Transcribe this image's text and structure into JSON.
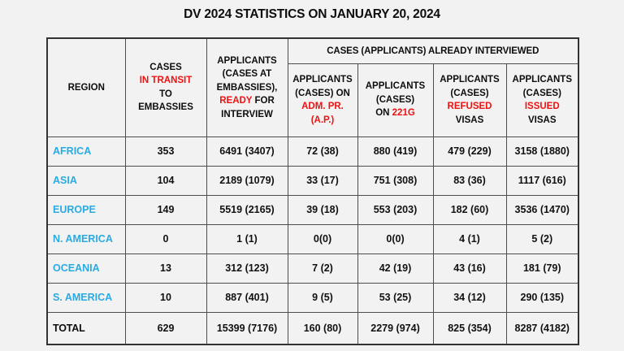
{
  "title": "DV 2024 STATISTICS ON JANUARY 20, 2024",
  "colors": {
    "accent_red": "#EE1111",
    "region_blue": "#29ABE2",
    "background": "#F2F2F2",
    "border": "#4D4D4D",
    "text": "#111111"
  },
  "table": {
    "header": {
      "region_label": "REGION",
      "group_label": "CASES (APPLICANTS) ALREADY INTERVIEWED",
      "transit_lines": [
        [
          {
            "text": "CASES"
          }
        ],
        [
          {
            "text": "IN TRANSIT",
            "red": true
          }
        ],
        [
          {
            "text": "TO"
          }
        ],
        [
          {
            "text": "EMBASSIES"
          }
        ]
      ],
      "ready_lines": [
        [
          {
            "text": "APPLICANTS"
          }
        ],
        [
          {
            "text": "(CASES AT"
          }
        ],
        [
          {
            "text": "EMBASSIES),"
          }
        ],
        [
          {
            "text": "READY",
            "red": true
          },
          {
            "text": " FOR"
          }
        ],
        [
          {
            "text": "INTERVIEW"
          }
        ]
      ],
      "adm_pr_lines": [
        [
          {
            "text": "APPLICANTS"
          }
        ],
        [
          {
            "text": "(CASES) ON"
          }
        ],
        [
          {
            "text": "ADM. PR.",
            "red": true
          }
        ],
        [
          {
            "text": "(A.P.)",
            "red": true
          }
        ]
      ],
      "g221_lines": [
        [
          {
            "text": "APPLICANTS"
          }
        ],
        [
          {
            "text": "(CASES)"
          }
        ],
        [
          {
            "text": "ON "
          },
          {
            "text": "221G",
            "red": true
          }
        ]
      ],
      "refused_lines": [
        [
          {
            "text": "APPLICANTS"
          }
        ],
        [
          {
            "text": "(CASES)"
          }
        ],
        [
          {
            "text": "REFUSED",
            "red": true
          }
        ],
        [
          {
            "text": "VISAS"
          }
        ]
      ],
      "issued_lines": [
        [
          {
            "text": "APPLICANTS"
          }
        ],
        [
          {
            "text": "(CASES)"
          }
        ],
        [
          {
            "text": "ISSUED",
            "red": true
          }
        ],
        [
          {
            "text": "VISAS"
          }
        ]
      ]
    },
    "rows": [
      {
        "region": "AFRICA",
        "values": [
          "353",
          "6491 (3407)",
          "72 (38)",
          "880 (419)",
          "479 (229)",
          "3158 (1880)"
        ]
      },
      {
        "region": "ASIA",
        "values": [
          "104",
          "2189 (1079)",
          "33 (17)",
          "751 (308)",
          "83 (36)",
          "1117 (616)"
        ]
      },
      {
        "region": "EUROPE",
        "values": [
          "149",
          "5519 (2165)",
          "39 (18)",
          "553 (203)",
          "182 (60)",
          "3536 (1470)"
        ]
      },
      {
        "region": "N. AMERICA",
        "values": [
          "0",
          "1 (1)",
          "0(0)",
          "0(0)",
          "4 (1)",
          "5 (2)"
        ]
      },
      {
        "region": "OCEANIA",
        "values": [
          "13",
          "312 (123)",
          "7 (2)",
          "42 (19)",
          "43 (16)",
          "181 (79)"
        ]
      },
      {
        "region": "S. AMERICA",
        "values": [
          "10",
          "887 (401)",
          "9 (5)",
          "53 (25)",
          "34 (12)",
          "290 (135)"
        ]
      },
      {
        "region": "TOTAL",
        "is_total": true,
        "values": [
          "629",
          "15399 (7176)",
          "160 (80)",
          "2279 (974)",
          "825 (354)",
          "8287 (4182)"
        ]
      }
    ]
  },
  "chart_data": {
    "type": "table",
    "title": "DV 2024 STATISTICS ON JANUARY 20, 2024",
    "columns": [
      "REGION",
      "CASES IN TRANSIT TO EMBASSIES",
      "APPLICANTS (CASES AT EMBASSIES), READY FOR INTERVIEW",
      "APPLICANTS (CASES) ON ADM. PR. (A.P.)",
      "APPLICANTS (CASES) ON 221G",
      "APPLICANTS (CASES) REFUSED VISAS",
      "APPLICANTS (CASES) ISSUED VISAS"
    ],
    "column_group": {
      "label": "CASES (APPLICANTS) ALREADY INTERVIEWED",
      "spans_columns": [
        3,
        4,
        5,
        6
      ]
    },
    "rows": [
      [
        "AFRICA",
        "353",
        "6491 (3407)",
        "72 (38)",
        "880 (419)",
        "479 (229)",
        "3158 (1880)"
      ],
      [
        "ASIA",
        "104",
        "2189 (1079)",
        "33 (17)",
        "751 (308)",
        "83 (36)",
        "1117 (616)"
      ],
      [
        "EUROPE",
        "149",
        "5519 (2165)",
        "39 (18)",
        "553 (203)",
        "182 (60)",
        "3536 (1470)"
      ],
      [
        "N. AMERICA",
        "0",
        "1 (1)",
        "0(0)",
        "0(0)",
        "4 (1)",
        "5 (2)"
      ],
      [
        "OCEANIA",
        "13",
        "312 (123)",
        "7 (2)",
        "42 (19)",
        "43 (16)",
        "181 (79)"
      ],
      [
        "S. AMERICA",
        "10",
        "887 (401)",
        "9 (5)",
        "53 (25)",
        "34 (12)",
        "290 (135)"
      ],
      [
        "TOTAL",
        "629",
        "15399 (7176)",
        "160 (80)",
        "2279 (974)",
        "825 (354)",
        "8287 (4182)"
      ]
    ]
  }
}
